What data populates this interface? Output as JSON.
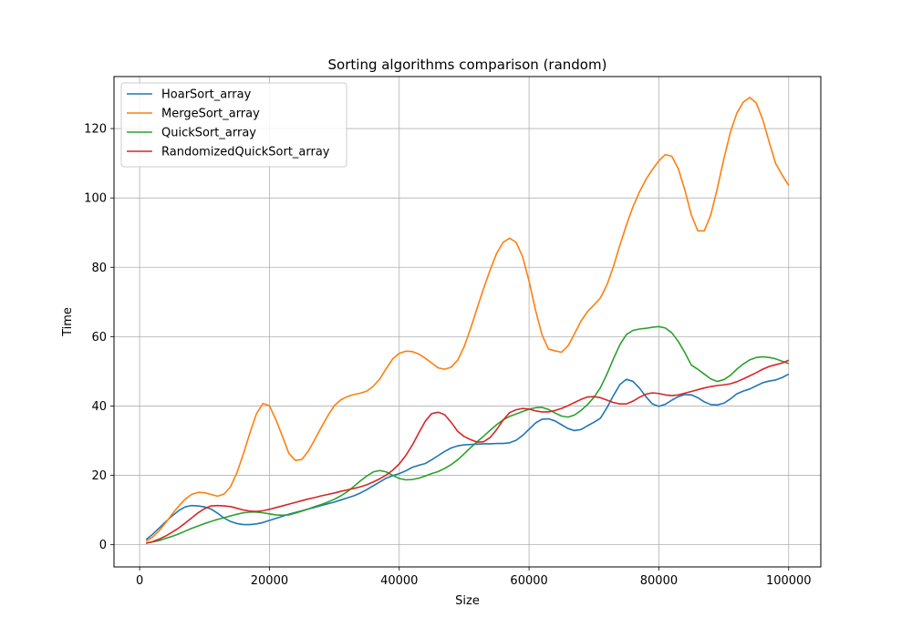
{
  "chart_data": {
    "type": "line",
    "title": "Sorting algorithms comparison (random)",
    "xlabel": "Size",
    "ylabel": "Time",
    "xlim": [
      -3950,
      104950
    ],
    "ylim": [
      -6.4,
      135
    ],
    "xticks": [
      0,
      20000,
      40000,
      60000,
      80000,
      100000
    ],
    "yticks": [
      0,
      20,
      40,
      60,
      80,
      100,
      120
    ],
    "grid": true,
    "legend_position": "upper left",
    "x": [
      1000,
      2000,
      3000,
      4000,
      5000,
      6000,
      7000,
      8000,
      9000,
      10000,
      11000,
      12000,
      13000,
      14000,
      15000,
      16000,
      17000,
      18000,
      19000,
      20000,
      21000,
      22000,
      23000,
      24000,
      25000,
      26000,
      27000,
      28000,
      29000,
      30000,
      31000,
      32000,
      33000,
      34000,
      35000,
      36000,
      37000,
      38000,
      39000,
      40000,
      41000,
      42000,
      43000,
      44000,
      45000,
      46000,
      47000,
      48000,
      49000,
      50000,
      51000,
      52000,
      53000,
      54000,
      55000,
      56000,
      57000,
      58000,
      59000,
      60000,
      61000,
      62000,
      63000,
      64000,
      65000,
      66000,
      67000,
      68000,
      69000,
      70000,
      71000,
      72000,
      73000,
      74000,
      75000,
      76000,
      77000,
      78000,
      79000,
      80000,
      81000,
      82000,
      83000,
      84000,
      85000,
      86000,
      87000,
      88000,
      89000,
      90000,
      91000,
      92000,
      93000,
      94000,
      95000,
      96000,
      97000,
      98000,
      99000,
      100000
    ],
    "series": [
      {
        "name": "HoarSort_array",
        "color": "#1f77b4",
        "values": [
          1.5,
          3,
          4.8,
          6.6,
          8.3,
          9.8,
          10.9,
          11.3,
          11.2,
          10.9,
          10.3,
          9.1,
          7.7,
          6.7,
          6.1,
          5.8,
          5.8,
          6,
          6.4,
          7,
          7.6,
          8.2,
          8.8,
          9.3,
          9.8,
          10.3,
          10.8,
          11.3,
          11.8,
          12.3,
          12.9,
          13.5,
          14.1,
          14.9,
          15.9,
          17,
          18.1,
          19.2,
          19.9,
          20.5,
          21.3,
          22.3,
          22.9,
          23.4,
          24.5,
          25.7,
          26.9,
          27.9,
          28.5,
          28.8,
          28.9,
          29,
          29.1,
          29.1,
          29.2,
          29.2,
          29.4,
          30.1,
          31.5,
          33.3,
          35.1,
          36.2,
          36.3,
          35.7,
          34.6,
          33.5,
          32.9,
          33.2,
          34.3,
          35.3,
          36.5,
          39.5,
          43,
          46.2,
          47.7,
          47.1,
          45.2,
          42.7,
          40.6,
          39.9,
          40.5,
          41.7,
          42.7,
          43.3,
          43.2,
          42.4,
          41.2,
          40.4,
          40.3,
          40.8,
          42,
          43.5,
          44.3,
          44.9,
          45.8,
          46.7,
          47.2,
          47.5,
          48.2,
          49.2
        ]
      },
      {
        "name": "MergeSort_array",
        "color": "#ff7f0e",
        "values": [
          1,
          2.2,
          4,
          6.3,
          8.8,
          11.1,
          13.1,
          14.5,
          15.1,
          15,
          14.5,
          14,
          14.6,
          16.7,
          20.8,
          26.3,
          32.3,
          37.8,
          40.7,
          40.1,
          36,
          31.3,
          26.3,
          24.3,
          24.6,
          27,
          30.4,
          33.9,
          37.2,
          40.1,
          41.8,
          42.7,
          43.3,
          43.7,
          44.3,
          45.7,
          47.8,
          50.8,
          53.6,
          55.2,
          55.8,
          55.7,
          55,
          53.8,
          52.4,
          51,
          50.6,
          51.2,
          53.2,
          57.1,
          62.4,
          68.2,
          73.9,
          79.2,
          84,
          87.2,
          88.4,
          87.2,
          83.1,
          76,
          67.6,
          60.5,
          56.4,
          55.9,
          55.5,
          57.3,
          60.8,
          64.5,
          67.2,
          69.1,
          71.2,
          74.9,
          80.2,
          86.4,
          92.2,
          97.4,
          101.7,
          105.3,
          108.2,
          110.7,
          112.5,
          112,
          108.4,
          102.3,
          95.1,
          90.5,
          90.5,
          95.1,
          102.7,
          111.2,
          118.8,
          124.4,
          127.6,
          129,
          127.4,
          122.6,
          116.1,
          109.9,
          106.6,
          103.6
        ]
      },
      {
        "name": "QuickSort_array",
        "color": "#2ca02c",
        "values": [
          0.5,
          0.8,
          1.2,
          1.8,
          2.4,
          3.1,
          3.9,
          4.7,
          5.4,
          6.1,
          6.7,
          7.3,
          7.8,
          8.3,
          8.8,
          9.2,
          9.4,
          9.4,
          9.2,
          8.9,
          8.6,
          8.5,
          8.6,
          9.1,
          9.7,
          10.3,
          11,
          11.6,
          12.3,
          13.1,
          14.1,
          15.3,
          16.8,
          18.4,
          19.8,
          21,
          21.4,
          21,
          20,
          19.1,
          18.7,
          18.8,
          19.2,
          19.8,
          20.5,
          21.1,
          22,
          23.1,
          24.5,
          26.2,
          28,
          29.7,
          31.3,
          33,
          34.6,
          36,
          37,
          37.7,
          38.4,
          39.1,
          39.5,
          39.6,
          39,
          38,
          37.1,
          36.8,
          37.4,
          38.7,
          40.4,
          42.5,
          45.3,
          49.2,
          53.6,
          57.7,
          60.6,
          61.8,
          62.2,
          62.4,
          62.7,
          62.9,
          62.5,
          61.1,
          58.6,
          55.4,
          51.8,
          50.6,
          49.2,
          47.8,
          47.1,
          47.6,
          48.8,
          50.6,
          52.1,
          53.3,
          54,
          54.2,
          54,
          53.6,
          52.9,
          52.2
        ]
      },
      {
        "name": "RandomizedQuickSort_array",
        "color": "#d62728",
        "values": [
          0.4,
          0.9,
          1.6,
          2.5,
          3.6,
          4.8,
          6.2,
          7.7,
          9.2,
          10.4,
          11.2,
          11.3,
          11.2,
          11,
          10.5,
          10,
          9.7,
          9.6,
          9.8,
          10.2,
          10.7,
          11.2,
          11.7,
          12.2,
          12.7,
          13.2,
          13.6,
          14.1,
          14.5,
          14.9,
          15.4,
          15.8,
          16.2,
          16.7,
          17.3,
          18.1,
          19,
          20.1,
          21.5,
          23.3,
          25.7,
          28.7,
          32.2,
          35.6,
          37.8,
          38.2,
          37.5,
          35.3,
          32.7,
          31.2,
          30.3,
          29.6,
          29.7,
          30.9,
          33.2,
          35.9,
          38.1,
          38.9,
          39.3,
          39.1,
          38.6,
          38.3,
          38.3,
          38.7,
          39.3,
          40.1,
          41,
          41.9,
          42.6,
          42.7,
          42.4,
          41.7,
          41,
          40.6,
          40.6,
          41.4,
          42.5,
          43.4,
          43.8,
          43.6,
          43.2,
          43,
          43.2,
          43.7,
          44.2,
          44.7,
          45.2,
          45.6,
          45.9,
          46.1,
          46.4,
          47,
          47.8,
          48.7,
          49.6,
          50.6,
          51.4,
          51.9,
          52.4,
          53.2
        ]
      }
    ]
  }
}
